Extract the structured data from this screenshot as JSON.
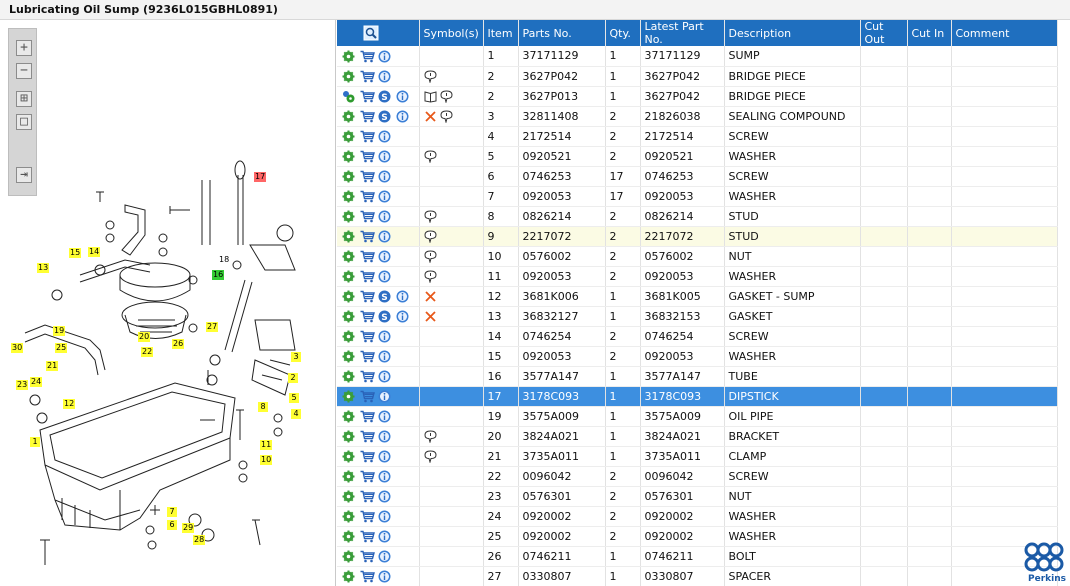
{
  "title": "Lubricating Oil Sump (9236L015GBHL0891)",
  "toolbar": {
    "zoom_in": "+",
    "zoom_out": "−",
    "fit": "⊞",
    "actual": "□",
    "export": "⇥"
  },
  "callouts": [
    "17",
    "13",
    "15",
    "14",
    "16",
    "18",
    "19",
    "20",
    "22",
    "27",
    "26",
    "30",
    "25",
    "21",
    "23",
    "24",
    "12",
    "3",
    "2",
    "5",
    "4",
    "8",
    "1",
    "11",
    "10",
    "7",
    "6",
    "29",
    "28"
  ],
  "columns": [
    "",
    "Symbol(s)",
    "Item",
    "Parts No.",
    "Qty.",
    "Latest Part No.",
    "Description",
    "Cut Out",
    "Cut In",
    "Comment"
  ],
  "rows": [
    {
      "item": "1",
      "part": "37171129",
      "qty": "1",
      "latest": "37171129",
      "desc": "SUMP",
      "syms": [],
      "s": false,
      "multi": false
    },
    {
      "item": "2",
      "part": "3627P042",
      "qty": "1",
      "latest": "3627P042",
      "desc": "BRIDGE PIECE",
      "syms": [
        "note"
      ],
      "s": false,
      "multi": false
    },
    {
      "item": "2",
      "part": "3627P013",
      "qty": "1",
      "latest": "3627P042",
      "desc": "BRIDGE PIECE",
      "syms": [
        "book",
        "note"
      ],
      "s": true,
      "multi": true
    },
    {
      "item": "3",
      "part": "32811408",
      "qty": "2",
      "latest": "21826038",
      "desc": "SEALING COMPOUND",
      "syms": [
        "cross",
        "note"
      ],
      "s": true,
      "multi": false
    },
    {
      "item": "4",
      "part": "2172514",
      "qty": "2",
      "latest": "2172514",
      "desc": "SCREW",
      "syms": [],
      "s": false,
      "multi": false
    },
    {
      "item": "5",
      "part": "0920521",
      "qty": "2",
      "latest": "0920521",
      "desc": "WASHER",
      "syms": [
        "note"
      ],
      "s": false,
      "multi": false
    },
    {
      "item": "6",
      "part": "0746253",
      "qty": "17",
      "latest": "0746253",
      "desc": "SCREW",
      "syms": [],
      "s": false,
      "multi": false
    },
    {
      "item": "7",
      "part": "0920053",
      "qty": "17",
      "latest": "0920053",
      "desc": "WASHER",
      "syms": [],
      "s": false,
      "multi": false
    },
    {
      "item": "8",
      "part": "0826214",
      "qty": "2",
      "latest": "0826214",
      "desc": "STUD",
      "syms": [
        "note"
      ],
      "s": false,
      "multi": false
    },
    {
      "item": "9",
      "part": "2217072",
      "qty": "2",
      "latest": "2217072",
      "desc": "STUD",
      "syms": [
        "note"
      ],
      "s": false,
      "multi": false,
      "hl": true
    },
    {
      "item": "10",
      "part": "0576002",
      "qty": "2",
      "latest": "0576002",
      "desc": "NUT",
      "syms": [
        "note"
      ],
      "s": false,
      "multi": false
    },
    {
      "item": "11",
      "part": "0920053",
      "qty": "2",
      "latest": "0920053",
      "desc": "WASHER",
      "syms": [
        "note"
      ],
      "s": false,
      "multi": false
    },
    {
      "item": "12",
      "part": "3681K006",
      "qty": "1",
      "latest": "3681K005",
      "desc": "GASKET - SUMP",
      "syms": [
        "cross"
      ],
      "s": true,
      "multi": false
    },
    {
      "item": "13",
      "part": "36832127",
      "qty": "1",
      "latest": "36832153",
      "desc": "GASKET",
      "syms": [
        "cross"
      ],
      "s": true,
      "multi": false
    },
    {
      "item": "14",
      "part": "0746254",
      "qty": "2",
      "latest": "0746254",
      "desc": "SCREW",
      "syms": [],
      "s": false,
      "multi": false
    },
    {
      "item": "15",
      "part": "0920053",
      "qty": "2",
      "latest": "0920053",
      "desc": "WASHER",
      "syms": [],
      "s": false,
      "multi": false
    },
    {
      "item": "16",
      "part": "3577A147",
      "qty": "1",
      "latest": "3577A147",
      "desc": "TUBE",
      "syms": [],
      "s": false,
      "multi": false
    },
    {
      "item": "17",
      "part": "3178C093",
      "qty": "1",
      "latest": "3178C093",
      "desc": "DIPSTICK",
      "syms": [],
      "s": false,
      "multi": false,
      "sel": true
    },
    {
      "item": "19",
      "part": "3575A009",
      "qty": "1",
      "latest": "3575A009",
      "desc": "OIL PIPE",
      "syms": [],
      "s": false,
      "multi": false
    },
    {
      "item": "20",
      "part": "3824A021",
      "qty": "1",
      "latest": "3824A021",
      "desc": "BRACKET",
      "syms": [
        "note"
      ],
      "s": false,
      "multi": false
    },
    {
      "item": "21",
      "part": "3735A011",
      "qty": "1",
      "latest": "3735A011",
      "desc": "CLAMP",
      "syms": [
        "note"
      ],
      "s": false,
      "multi": false
    },
    {
      "item": "22",
      "part": "0096042",
      "qty": "2",
      "latest": "0096042",
      "desc": "SCREW",
      "syms": [],
      "s": false,
      "multi": false
    },
    {
      "item": "23",
      "part": "0576301",
      "qty": "2",
      "latest": "0576301",
      "desc": "NUT",
      "syms": [],
      "s": false,
      "multi": false
    },
    {
      "item": "24",
      "part": "0920002",
      "qty": "2",
      "latest": "0920002",
      "desc": "WASHER",
      "syms": [],
      "s": false,
      "multi": false
    },
    {
      "item": "25",
      "part": "0920002",
      "qty": "2",
      "latest": "0920002",
      "desc": "WASHER",
      "syms": [],
      "s": false,
      "multi": false
    },
    {
      "item": "26",
      "part": "0746211",
      "qty": "1",
      "latest": "0746211",
      "desc": "BOLT",
      "syms": [],
      "s": false,
      "multi": false
    },
    {
      "item": "27",
      "part": "0330807",
      "qty": "1",
      "latest": "0330807",
      "desc": "SPACER",
      "syms": [],
      "s": false,
      "multi": false
    }
  ],
  "brand": "Perkins",
  "colors": {
    "header": "#1f6fbf",
    "selected": "#3d8fe0",
    "callout_yellow": "#ffff33",
    "callout_green": "#33cc33",
    "callout_red": "#ff6666"
  }
}
